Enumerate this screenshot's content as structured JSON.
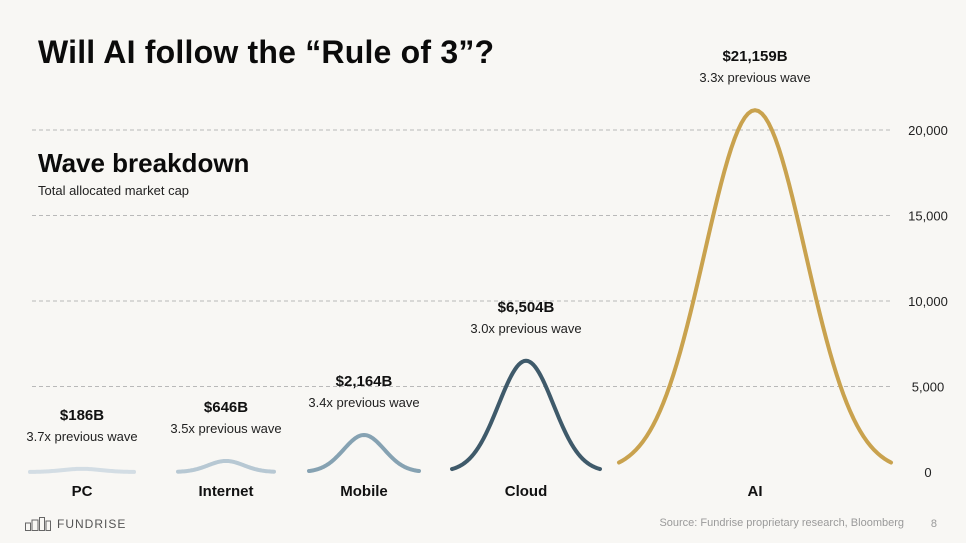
{
  "slide": {
    "title": "Will AI follow the “Rule of 3”?",
    "page_number": "8",
    "source": "Source: Fundrise proprietary research, Bloomberg",
    "logo_text": "FUNDRISE"
  },
  "chart_data": {
    "type": "area",
    "title": "Wave breakdown",
    "subtitle": "Total allocated market cap",
    "xlabel": "",
    "ylabel": "",
    "ylim": [
      0,
      21159
    ],
    "y_ticks": [
      "0",
      "5,000",
      "10,000",
      "15,000",
      "20,000"
    ],
    "y_tick_values": [
      0,
      5000,
      10000,
      15000,
      20000
    ],
    "grid": true,
    "categories": [
      "PC",
      "Internet",
      "Mobile",
      "Cloud",
      "AI"
    ],
    "series": [
      {
        "name": "PC",
        "value": 186,
        "value_label": "$186B",
        "multiplier_label": "3.7x previous wave",
        "color": "#d3dde4"
      },
      {
        "name": "Internet",
        "value": 646,
        "value_label": "$646B",
        "multiplier_label": "3.5x previous wave",
        "color": "#b7c8d3"
      },
      {
        "name": "Mobile",
        "value": 2164,
        "value_label": "$2,164B",
        "multiplier_label": "3.4x previous wave",
        "color": "#86a2b2"
      },
      {
        "name": "Cloud",
        "value": 6504,
        "value_label": "$6,504B",
        "multiplier_label": "3.0x previous wave",
        "color": "#3f5a6a"
      },
      {
        "name": "AI",
        "value": 21159,
        "value_label": "$21,159B",
        "multiplier_label": "3.3x previous wave",
        "color": "#c9a24e"
      }
    ]
  }
}
